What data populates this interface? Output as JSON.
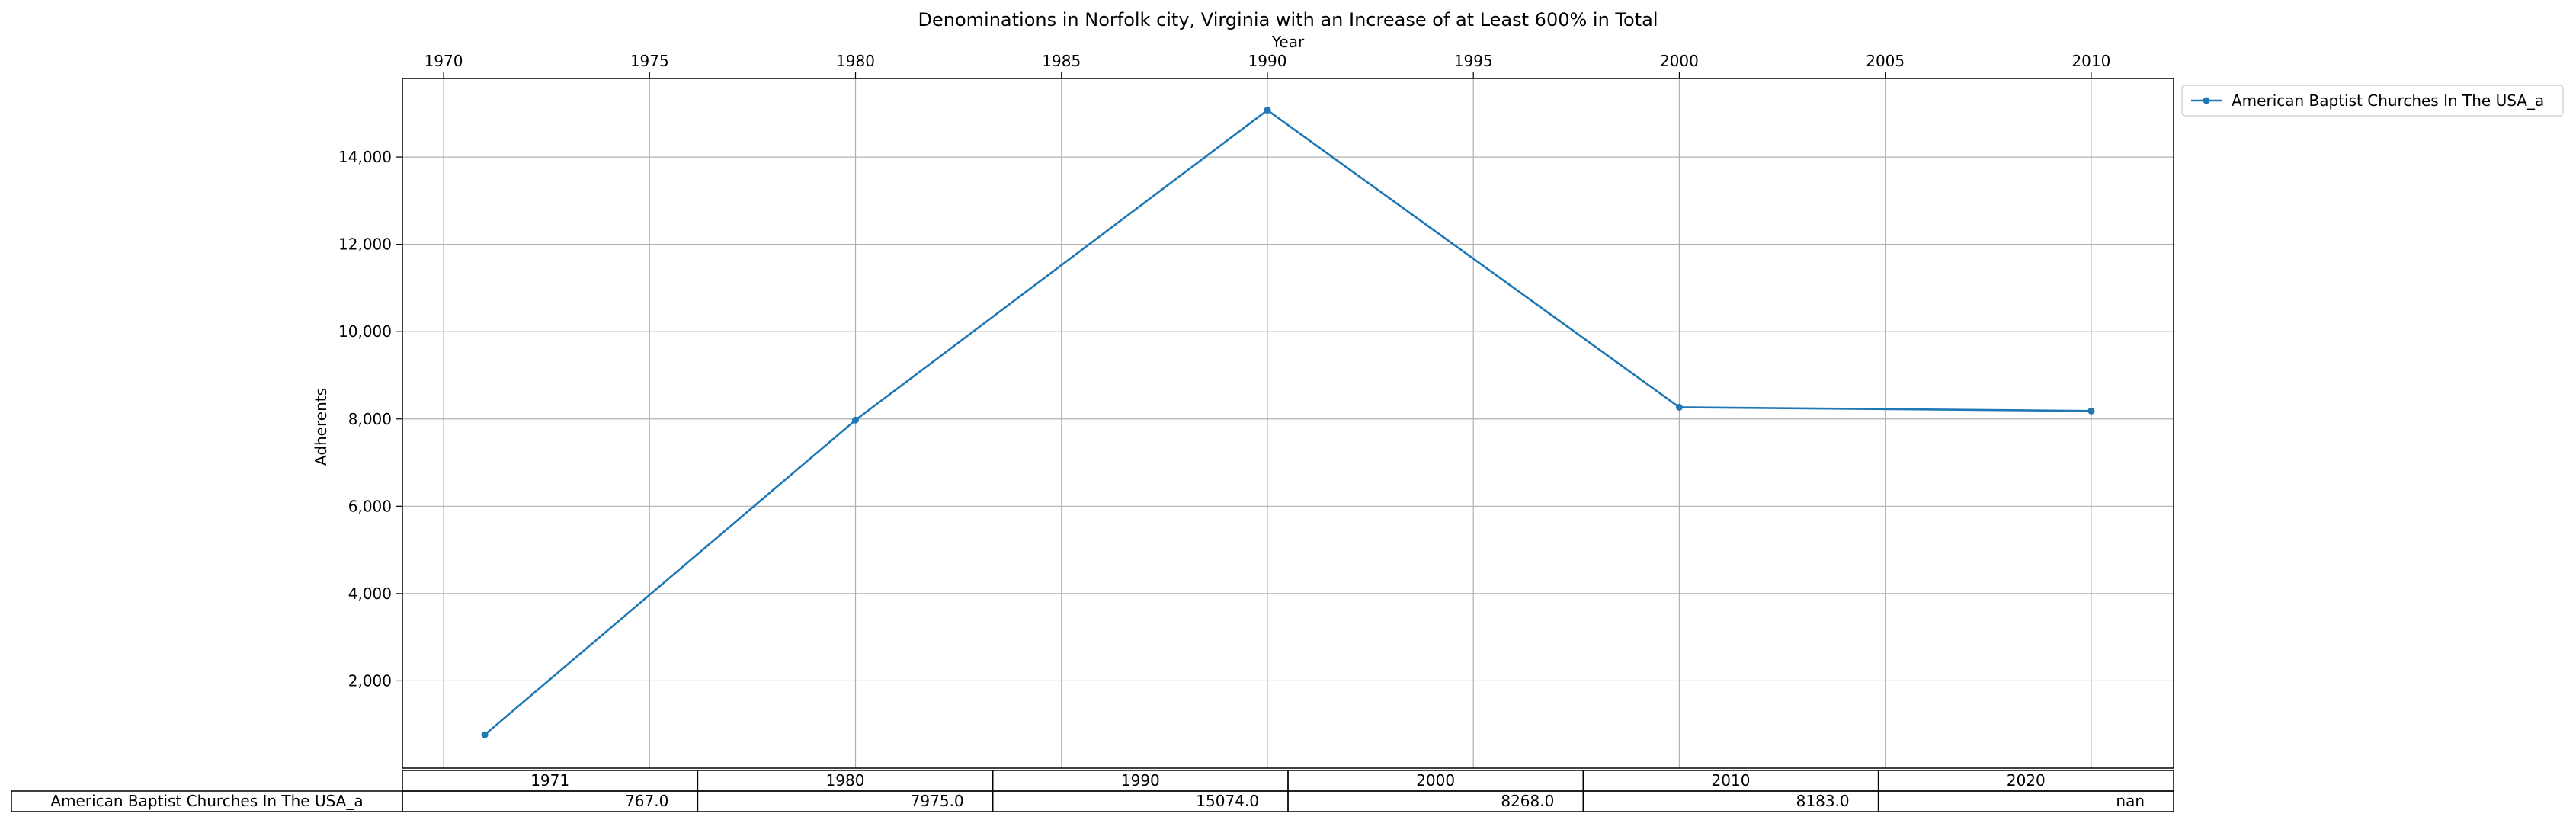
{
  "chart_data": {
    "type": "line",
    "title": "Denominations in Norfolk city, Virginia with an Increase of at Least 600% in Total",
    "xlabel": "Year",
    "ylabel": "Adherents",
    "xlim": [
      1969,
      2012
    ],
    "ylim": [
      0,
      15800
    ],
    "x_ticks": [
      1970,
      1975,
      1980,
      1985,
      1990,
      1995,
      2000,
      2005,
      2010
    ],
    "y_ticks": [
      2000,
      4000,
      6000,
      8000,
      10000,
      12000,
      14000
    ],
    "y_tick_labels": [
      "2,000",
      "4,000",
      "6,000",
      "8,000",
      "10,000",
      "12,000",
      "14,000"
    ],
    "x_tick_labels": [
      "1970",
      "1975",
      "1980",
      "1985",
      "1990",
      "1995",
      "2000",
      "2005",
      "2010"
    ],
    "grid": true,
    "legend_position": "outside-top-right",
    "series": [
      {
        "name": "American Baptist Churches In The USA_a",
        "color": "#1f77b4",
        "x": [
          1971,
          1980,
          1990,
          2000,
          2010
        ],
        "values": [
          767,
          7975,
          15074,
          8268,
          8183
        ]
      }
    ],
    "table": {
      "columns": [
        "1971",
        "1980",
        "1990",
        "2000",
        "2010",
        "2020"
      ],
      "rows": [
        {
          "label": "American Baptist Churches In The USA_a",
          "cells": [
            "767.0",
            "7975.0",
            "15074.0",
            "8268.0",
            "8183.0",
            "nan"
          ]
        }
      ]
    }
  }
}
